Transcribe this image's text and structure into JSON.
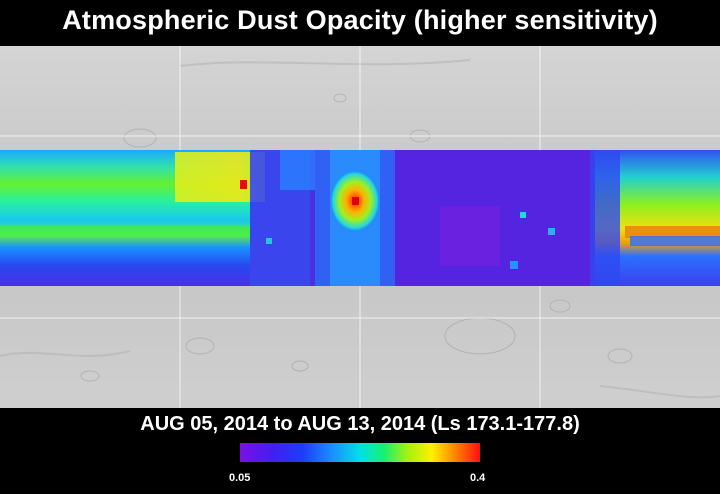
{
  "title": "Atmospheric Dust Opacity (higher sensitivity)",
  "date_range": "AUG 05, 2014 to AUG 13, 2014 (Ls 173.1-177.8)",
  "colorbar": {
    "min_label": "0.05",
    "max_label": "0.4"
  },
  "colors": {
    "background": "#000000",
    "terrain": "#c8c8c8",
    "low": "#6a18e0",
    "high": "#ff0000"
  }
}
